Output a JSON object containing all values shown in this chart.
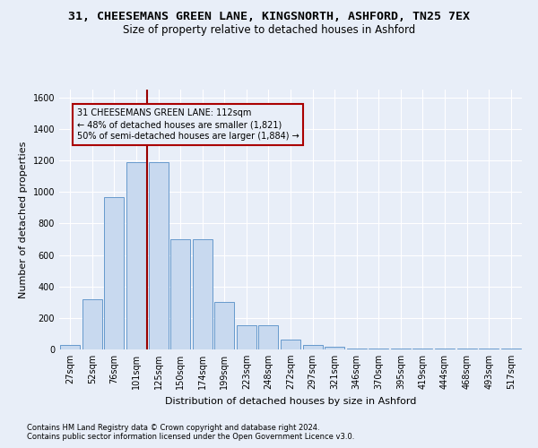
{
  "title1": "31, CHEESEMANS GREEN LANE, KINGSNORTH, ASHFORD, TN25 7EX",
  "title2": "Size of property relative to detached houses in Ashford",
  "xlabel": "Distribution of detached houses by size in Ashford",
  "ylabel": "Number of detached properties",
  "footnote1": "Contains HM Land Registry data © Crown copyright and database right 2024.",
  "footnote2": "Contains public sector information licensed under the Open Government Licence v3.0.",
  "categories": [
    "27sqm",
    "52sqm",
    "76sqm",
    "101sqm",
    "125sqm",
    "150sqm",
    "174sqm",
    "199sqm",
    "223sqm",
    "248sqm",
    "272sqm",
    "297sqm",
    "321sqm",
    "346sqm",
    "370sqm",
    "395sqm",
    "419sqm",
    "444sqm",
    "468sqm",
    "493sqm",
    "517sqm"
  ],
  "values": [
    28,
    320,
    970,
    1190,
    1190,
    700,
    700,
    300,
    155,
    155,
    65,
    28,
    18,
    5,
    5,
    5,
    5,
    5,
    5,
    5,
    5
  ],
  "bar_color": "#c8d9ef",
  "bar_edge_color": "#6699cc",
  "vline_color": "#990000",
  "annotation_text": "31 CHEESEMANS GREEN LANE: 112sqm\n← 48% of detached houses are smaller (1,821)\n50% of semi-detached houses are larger (1,884) →",
  "annotation_box_color": "#aa0000",
  "ylim": [
    0,
    1650
  ],
  "yticks": [
    0,
    200,
    400,
    600,
    800,
    1000,
    1200,
    1400,
    1600
  ],
  "bg_color": "#e8eef8",
  "grid_color": "#ffffff",
  "title1_fontsize": 9.5,
  "title2_fontsize": 8.5,
  "xlabel_fontsize": 8,
  "ylabel_fontsize": 8,
  "tick_fontsize": 7,
  "annot_fontsize": 7,
  "footnote_fontsize": 6
}
